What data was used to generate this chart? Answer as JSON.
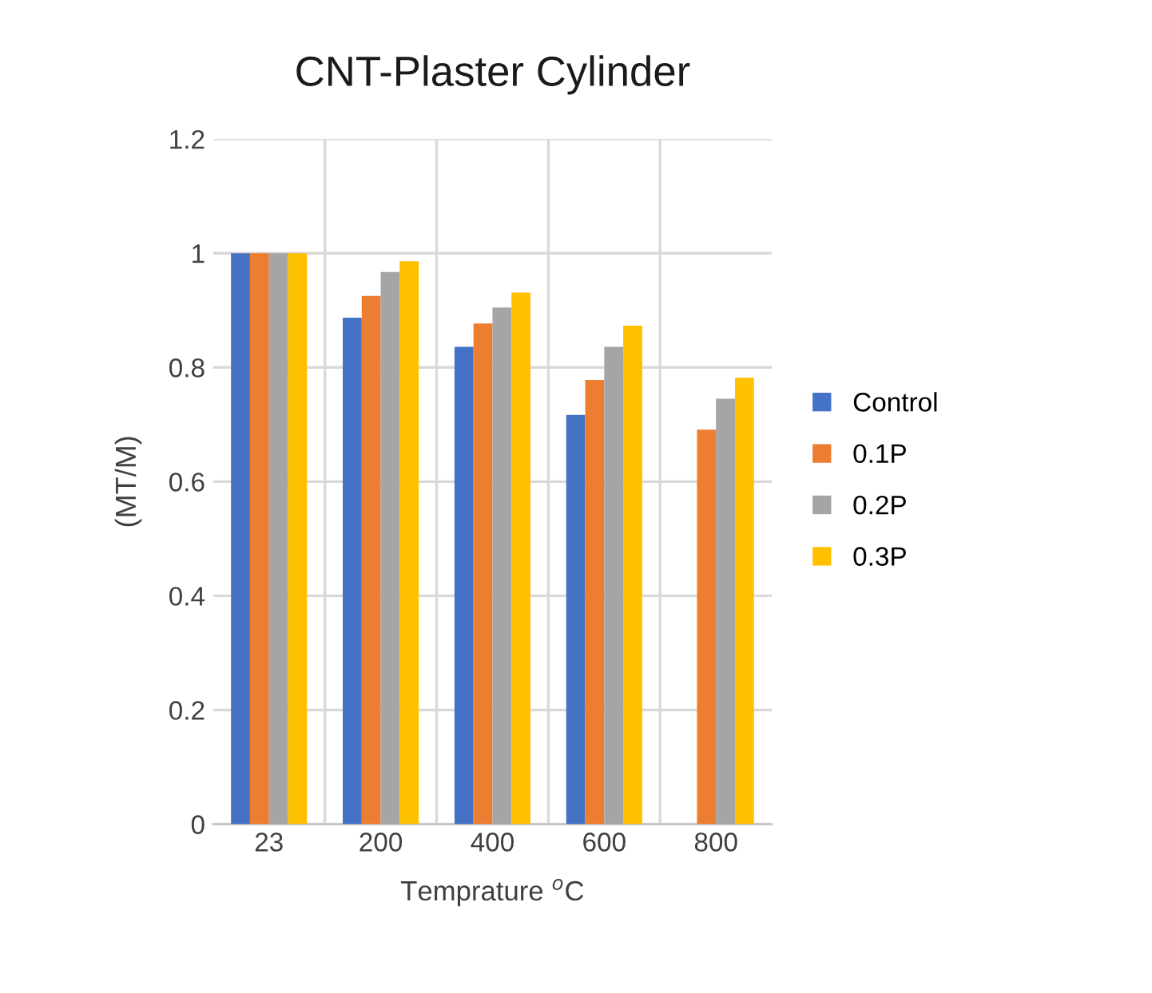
{
  "chart_data": {
    "type": "bar",
    "title": "CNT-Plaster Cylinder",
    "xlabel": "Temprature $^{o}$C",
    "ylabel": "(MT/M)",
    "categories": [
      "23",
      "200",
      "400",
      "600",
      "800"
    ],
    "series": [
      {
        "name": "Control",
        "color": "#4472c4",
        "values": [
          1.0,
          0.887,
          0.836,
          0.717,
          null
        ]
      },
      {
        "name": "0.1P",
        "color": "#ed7d31",
        "values": [
          1.0,
          0.925,
          0.877,
          0.778,
          0.691
        ]
      },
      {
        "name": "0.2P",
        "color": "#a5a5a5",
        "values": [
          1.0,
          0.967,
          0.905,
          0.836,
          0.745
        ]
      },
      {
        "name": "0.3P",
        "color": "#ffc000",
        "values": [
          1.0,
          0.986,
          0.931,
          0.873,
          0.782
        ]
      }
    ],
    "ylim": [
      0,
      1.2
    ],
    "yticks": [
      0,
      0.2,
      0.4,
      0.6,
      0.8,
      1,
      1.2
    ],
    "grid": true,
    "legend": "right"
  }
}
